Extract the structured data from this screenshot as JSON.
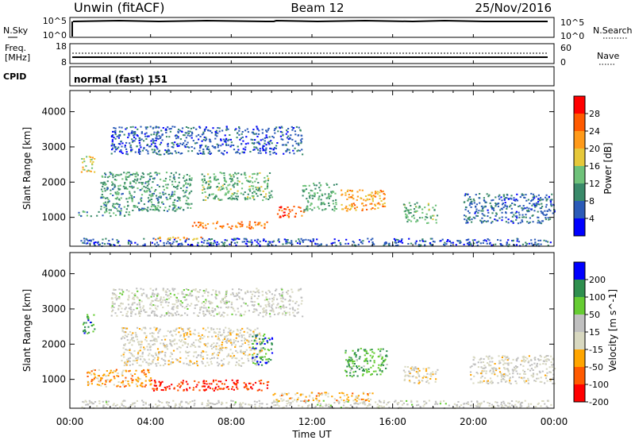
{
  "header": {
    "station": "Unwin (fitACF)",
    "beam": "Beam 12",
    "date": "25/Nov/2016"
  },
  "panels": {
    "nsky": {
      "left_label": "N.Sky",
      "left_ticks": [
        "10^5",
        "10^0"
      ],
      "right_ticks": [
        "10^5",
        "10^0"
      ],
      "right_label": "N.Search",
      "right_legend_style": "dotted"
    },
    "freq": {
      "left_label_line1": "Freq.",
      "left_label_line2": "[MHz]",
      "left_ticks": [
        "18",
        "8"
      ],
      "right_ticks": [
        "60",
        "0"
      ],
      "right_label": "Nave",
      "right_legend_style": "dotted"
    },
    "cpid": {
      "label": "CPID",
      "text": "normal (fast) 151"
    }
  },
  "x_axis": {
    "title": "Time UT",
    "ticks": [
      "00:00",
      "04:00",
      "08:00",
      "12:00",
      "16:00",
      "20:00",
      "00:00"
    ]
  },
  "colors": {
    "power": [
      "#0000ff",
      "#2b5bb8",
      "#3a8a6a",
      "#6fc27a",
      "#e6c83a",
      "#ff9a1a",
      "#ff5a00",
      "#ff0000"
    ],
    "velocity": [
      "#ff0000",
      "#ff5a00",
      "#ffa500",
      "#d8d8c0",
      "#c0c0c0",
      "#66cc33",
      "#2f8f4f",
      "#0000ff"
    ]
  },
  "chart_data": [
    {
      "type": "heatmap",
      "title": "",
      "xlabel": "",
      "ylabel": "Slant Range [km]",
      "x_range_hours": [
        0,
        24
      ],
      "ylim": [
        180,
        4600
      ],
      "y_ticks": [
        1000,
        2000,
        3000,
        4000
      ],
      "colorbar": {
        "label": "Power [dB]",
        "ticks": [
          4,
          8,
          12,
          16,
          20,
          24,
          28
        ],
        "range": [
          0,
          32
        ]
      },
      "scatter_regions": [
        {
          "t_start": 0.4,
          "t_end": 23.9,
          "r_min": 200,
          "r_max": 420,
          "value": 6
        },
        {
          "t_start": 4.0,
          "t_end": 6.5,
          "r_min": 380,
          "r_max": 480,
          "value": 22
        },
        {
          "t_start": 6.0,
          "t_end": 9.8,
          "r_min": 700,
          "r_max": 900,
          "value": 24
        },
        {
          "t_start": 0.4,
          "t_end": 3.0,
          "r_min": 1050,
          "r_max": 1200,
          "value": 10
        },
        {
          "t_start": 1.5,
          "t_end": 6.0,
          "r_min": 1200,
          "r_max": 2300,
          "value": 11
        },
        {
          "t_start": 6.5,
          "t_end": 10.0,
          "r_min": 1500,
          "r_max": 2300,
          "value": 13
        },
        {
          "t_start": 10.2,
          "t_end": 11.6,
          "r_min": 1000,
          "r_max": 1350,
          "value": 26
        },
        {
          "t_start": 11.5,
          "t_end": 13.2,
          "r_min": 1200,
          "r_max": 2000,
          "value": 12
        },
        {
          "t_start": 13.4,
          "t_end": 15.6,
          "r_min": 1200,
          "r_max": 1800,
          "value": 22
        },
        {
          "t_start": 16.5,
          "t_end": 18.2,
          "r_min": 850,
          "r_max": 1450,
          "value": 13
        },
        {
          "t_start": 19.5,
          "t_end": 24.0,
          "r_min": 850,
          "r_max": 1700,
          "value": 7
        },
        {
          "t_start": 0.5,
          "t_end": 1.2,
          "r_min": 2300,
          "r_max": 2750,
          "value": 18
        },
        {
          "t_start": 2.0,
          "t_end": 11.5,
          "r_min": 2800,
          "r_max": 3600,
          "value": 6
        }
      ]
    },
    {
      "type": "heatmap",
      "title": "",
      "xlabel": "Time UT",
      "ylabel": "Slant Range [km]",
      "x_range_hours": [
        0,
        24
      ],
      "ylim": [
        180,
        4600
      ],
      "y_ticks": [
        1000,
        2000,
        3000,
        4000
      ],
      "colorbar": {
        "label": "Velocity [m s^-1]",
        "ticks": [
          200,
          100,
          50,
          15,
          -15,
          -50,
          -100,
          -200
        ],
        "range": [
          -250,
          250
        ]
      },
      "scatter_regions": [
        {
          "t_start": 0.4,
          "t_end": 23.9,
          "r_min": 200,
          "r_max": 420,
          "value": 5
        },
        {
          "t_start": 4.0,
          "t_end": 9.8,
          "r_min": 700,
          "r_max": 1000,
          "value": -200
        },
        {
          "t_start": 10.0,
          "t_end": 15.0,
          "r_min": 400,
          "r_max": 650,
          "value": -80
        },
        {
          "t_start": 13.6,
          "t_end": 15.7,
          "r_min": 1100,
          "r_max": 1900,
          "value": 120
        },
        {
          "t_start": 16.5,
          "t_end": 18.2,
          "r_min": 900,
          "r_max": 1400,
          "value": -30
        },
        {
          "t_start": 19.8,
          "t_end": 24.0,
          "r_min": 900,
          "r_max": 1700,
          "value": -10
        },
        {
          "t_start": 0.6,
          "t_end": 1.2,
          "r_min": 2300,
          "r_max": 2900,
          "value": 150
        },
        {
          "t_start": 2.5,
          "t_end": 9.5,
          "r_min": 1400,
          "r_max": 2500,
          "value": -20
        },
        {
          "t_start": 9.0,
          "t_end": 10.0,
          "r_min": 1400,
          "r_max": 2300,
          "value": 150
        },
        {
          "t_start": 0.8,
          "t_end": 4.0,
          "r_min": 800,
          "r_max": 1300,
          "value": -100
        },
        {
          "t_start": 2.0,
          "t_end": 11.5,
          "r_min": 2800,
          "r_max": 3600,
          "value": 10
        }
      ]
    }
  ]
}
